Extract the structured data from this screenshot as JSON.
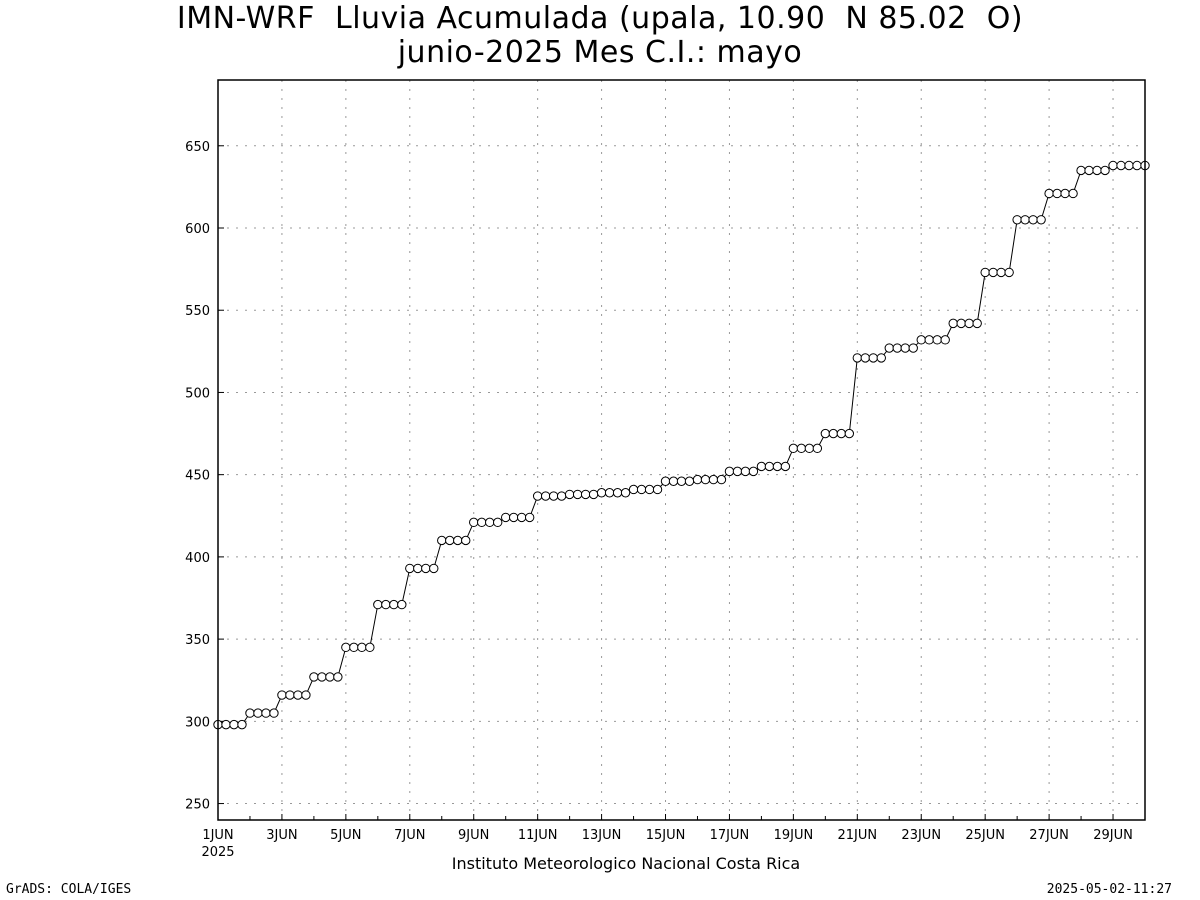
{
  "title_line1": "IMN-WRF  Lluvia Acumulada (upala, 10.90  N 85.02  O)",
  "title_line2": "junio-2025 Mes C.I.: mayo",
  "footer_left": "GrADS: COLA/IGES",
  "footer_right": "2025-05-02-11:27",
  "chart_data": {
    "type": "line",
    "title": "IMN-WRF  Lluvia Acumulada (upala, 10.90  N 85.02  O)",
    "subtitle": "junio-2025 Mes C.I.: mayo",
    "xlabel": "Instituto Meteorologico Nacional Costa Rica",
    "ylabel": "",
    "x_year_label": "2025",
    "x_unit": "days from 1 June 2025 00Z, 6-hourly",
    "xlim": [
      0,
      29
    ],
    "ylim": [
      240,
      690
    ],
    "grid": true,
    "marker": "open-circle",
    "line_color": "#000000",
    "y_ticks": [
      250,
      300,
      350,
      400,
      450,
      500,
      550,
      600,
      650
    ],
    "x_ticks": [
      {
        "day": 0,
        "label": "1JUN"
      },
      {
        "day": 2,
        "label": "3JUN"
      },
      {
        "day": 4,
        "label": "5JUN"
      },
      {
        "day": 6,
        "label": "7JUN"
      },
      {
        "day": 8,
        "label": "9JUN"
      },
      {
        "day": 10,
        "label": "11JUN"
      },
      {
        "day": 12,
        "label": "13JUN"
      },
      {
        "day": 14,
        "label": "15JUN"
      },
      {
        "day": 16,
        "label": "17JUN"
      },
      {
        "day": 18,
        "label": "19JUN"
      },
      {
        "day": 20,
        "label": "21JUN"
      },
      {
        "day": 22,
        "label": "23JUN"
      },
      {
        "day": 24,
        "label": "25JUN"
      },
      {
        "day": 26,
        "label": "27JUN"
      },
      {
        "day": 28,
        "label": "29JUN"
      }
    ],
    "series": [
      {
        "values": [
          298,
          298,
          298,
          298,
          305,
          305,
          305,
          305,
          316,
          316,
          316,
          316,
          327,
          327,
          327,
          327,
          345,
          345,
          345,
          345,
          371,
          371,
          371,
          371,
          393,
          393,
          393,
          393,
          410,
          410,
          410,
          410,
          421,
          421,
          421,
          421,
          424,
          424,
          424,
          424,
          437,
          437,
          437,
          437,
          438,
          438,
          438,
          438,
          439,
          439,
          439,
          439,
          441,
          441,
          441,
          441,
          446,
          446,
          446,
          446,
          447,
          447,
          447,
          447,
          452,
          452,
          452,
          452,
          455,
          455,
          455,
          455,
          466,
          466,
          466,
          466,
          475,
          475,
          475,
          475,
          521,
          521,
          521,
          521,
          527,
          527,
          527,
          527,
          532,
          532,
          532,
          532,
          542,
          542,
          542,
          542,
          573,
          573,
          573,
          573,
          605,
          605,
          605,
          605,
          621,
          621,
          621,
          621,
          635,
          635,
          635,
          635,
          638,
          638,
          638,
          638,
          638
        ]
      }
    ]
  }
}
